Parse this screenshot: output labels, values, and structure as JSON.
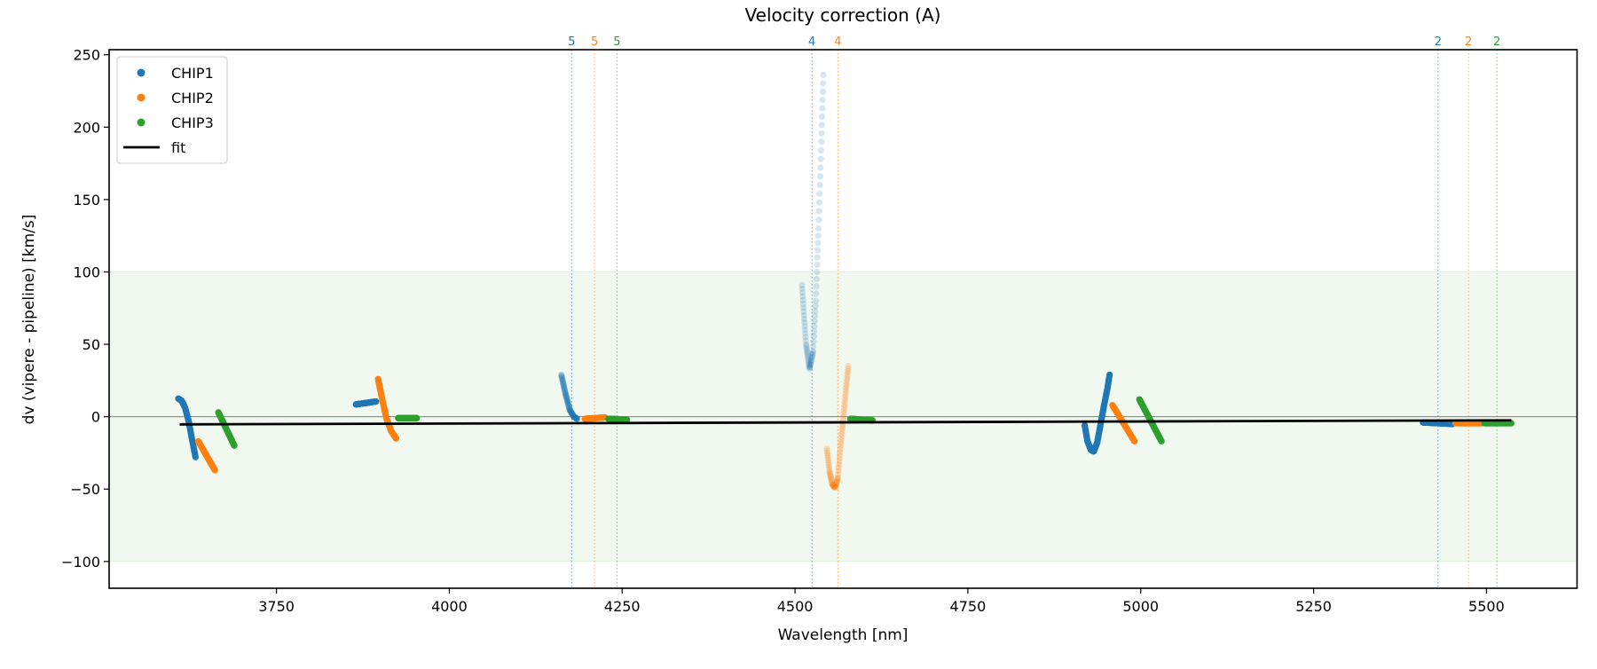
{
  "chart_data": {
    "type": "scatter",
    "title": "Velocity correction (A)",
    "xlabel": "Wavelength [nm]",
    "ylabel": "dv (vipere - pipeline) [km/s]",
    "xlim": [
      3508,
      5631
    ],
    "ylim": [
      -118.5,
      253.5
    ],
    "xticks": [
      3750,
      4000,
      4250,
      4500,
      4750,
      5000,
      5250,
      5500
    ],
    "yticks": [
      -100,
      -50,
      0,
      50,
      100,
      150,
      200,
      250
    ],
    "ytick_labels": [
      "−100",
      "−50",
      "0",
      "50",
      "100",
      "150",
      "200",
      "250"
    ],
    "grid": false,
    "legend_position": "top-left",
    "band": {
      "ymin": -100,
      "ymax": 100,
      "color": "#2ca02c"
    },
    "zero_line": 0,
    "legend": [
      {
        "label": "CHIP1",
        "kind": "marker",
        "color": "#1f77b4"
      },
      {
        "label": "CHIP2",
        "kind": "marker",
        "color": "#ff7f0e"
      },
      {
        "label": "CHIP3",
        "kind": "marker",
        "color": "#2ca02c"
      },
      {
        "label": "fit",
        "kind": "line",
        "color": "#000000"
      }
    ],
    "series": [
      {
        "name": "CHIP1",
        "color": "#1f77b4",
        "segments": [
          {
            "alpha": 0.9,
            "points": [
              [
                3608,
                12.5
              ],
              [
                3613,
                11
              ],
              [
                3618,
                6
              ],
              [
                3623,
                -3
              ],
              [
                3628,
                -16
              ],
              [
                3633,
                -28
              ]
            ]
          },
          {
            "alpha": 1,
            "points": [
              [
                3865,
                8.5
              ],
              [
                3880,
                9.5
              ],
              [
                3894,
                10.5
              ]
            ]
          },
          {
            "alpha": 0.3,
            "points": [
              [
                4162,
                29
              ],
              [
                4168,
                16
              ],
              [
                4174,
                5
              ],
              [
                4180,
                0
              ],
              [
                4185,
                -1.5
              ]
            ]
          },
          {
            "alpha": 0.18,
            "points": [
              [
                4510,
                91
              ],
              [
                4513,
                70
              ],
              [
                4516,
                50
              ],
              [
                4521,
                33
              ],
              [
                4526,
                45
              ],
              [
                4530,
                80
              ],
              [
                4534,
                130
              ],
              [
                4538,
                190
              ],
              [
                4541,
                236
              ]
            ]
          },
          {
            "alpha": 1,
            "points": [
              [
                4919,
                -6
              ],
              [
                4923,
                -17
              ],
              [
                4928,
                -23
              ],
              [
                4932,
                -24
              ],
              [
                4937,
                -18
              ],
              [
                4942,
                -5
              ],
              [
                4947,
                8
              ],
              [
                4952,
                20
              ],
              [
                4955,
                29
              ]
            ]
          },
          {
            "alpha": 0.75,
            "points": [
              [
                5408,
                -4
              ],
              [
                5451,
                -5
              ]
            ]
          }
        ]
      },
      {
        "name": "CHIP2",
        "color": "#ff7f0e",
        "segments": [
          {
            "alpha": 1,
            "points": [
              [
                3637,
                -17
              ],
              [
                3661,
                -37
              ]
            ]
          },
          {
            "alpha": 1,
            "points": [
              [
                3897,
                26
              ],
              [
                3903,
                12
              ],
              [
                3909,
                -1
              ],
              [
                3916,
                -10
              ],
              [
                3923,
                -15
              ]
            ]
          },
          {
            "alpha": 0.85,
            "points": [
              [
                4196,
                -1.5
              ],
              [
                4225,
                -0.5
              ]
            ]
          },
          {
            "alpha": 0.22,
            "points": [
              [
                4546,
                -22
              ],
              [
                4550,
                -38
              ],
              [
                4554,
                -47
              ],
              [
                4558,
                -49
              ],
              [
                4562,
                -42
              ],
              [
                4566,
                -20
              ],
              [
                4570,
                0
              ],
              [
                4574,
                20
              ],
              [
                4577,
                35
              ]
            ]
          },
          {
            "alpha": 1,
            "points": [
              [
                4959,
                8
              ],
              [
                4991,
                -17
              ]
            ]
          },
          {
            "alpha": 0.8,
            "points": [
              [
                5455,
                -4.5
              ],
              [
                5494,
                -4.5
              ]
            ]
          }
        ]
      },
      {
        "name": "CHIP3",
        "color": "#2ca02c",
        "segments": [
          {
            "alpha": 1,
            "points": [
              [
                3666,
                3
              ],
              [
                3689,
                -20
              ]
            ]
          },
          {
            "alpha": 1,
            "points": [
              [
                3926,
                -1
              ],
              [
                3953,
                -1
              ]
            ]
          },
          {
            "alpha": 0.85,
            "points": [
              [
                4230,
                -1.5
              ],
              [
                4257,
                -2
              ]
            ]
          },
          {
            "alpha": 1,
            "points": [
              [
                4580,
                -1.5
              ],
              [
                4612,
                -2.5
              ]
            ]
          },
          {
            "alpha": 1,
            "points": [
              [
                5030,
                -17
              ],
              [
                4998,
                12
              ]
            ]
          },
          {
            "alpha": 0.8,
            "points": [
              [
                5497,
                -4.5
              ],
              [
                5536,
                -4.5
              ]
            ]
          }
        ]
      }
    ],
    "fit": {
      "name": "fit",
      "color": "#000000",
      "points": [
        [
          3610,
          -5.3
        ],
        [
          5536,
          -2.5
        ]
      ]
    },
    "order_markers": [
      {
        "x": 4177,
        "label": "5",
        "color": "#1f77b4"
      },
      {
        "x": 4210,
        "label": "5",
        "color": "#ff7f0e"
      },
      {
        "x": 4242.5,
        "label": "5",
        "color": "#2ca02c"
      },
      {
        "x": 4524.5,
        "label": "4",
        "color": "#1f77b4"
      },
      {
        "x": 4562,
        "label": "4",
        "color": "#ff7f0e"
      },
      {
        "x": 5430,
        "label": "2",
        "color": "#1f77b4"
      },
      {
        "x": 5474,
        "label": "2",
        "color": "#ff7f0e"
      },
      {
        "x": 5515,
        "label": "2",
        "color": "#2ca02c"
      }
    ]
  }
}
